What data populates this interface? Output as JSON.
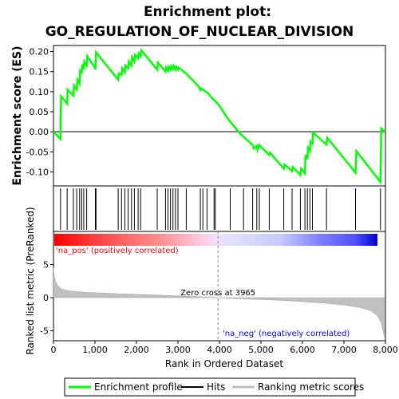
{
  "chart_data": {
    "type": "line",
    "title_line1": "Enrichment plot:",
    "title_line2": "GO_REGULATION_OF_NUCLEAR_DIVISION",
    "top_panel": {
      "ylabel": "Enrichment score (ES)",
      "ylim": [
        -0.135,
        0.215
      ],
      "yticks": [
        "0.20",
        "0.15",
        "0.10",
        "0.05",
        "0.00",
        "-0.05",
        "-0.10"
      ],
      "ytick_values": [
        0.2,
        0.15,
        0.1,
        0.05,
        0.0,
        -0.05,
        -0.1
      ],
      "series": [
        {
          "name": "Enrichment profile",
          "color": "#00ff00",
          "x": [
            0,
            170,
            175,
            185,
            330,
            340,
            480,
            495,
            560,
            575,
            630,
            645,
            680,
            695,
            730,
            745,
            800,
            815,
            1000,
            1010,
            1025,
            1560,
            1575,
            1640,
            1655,
            1720,
            1735,
            1800,
            1815,
            1880,
            1895,
            1950,
            1965,
            2040,
            2055,
            2100,
            2115,
            2500,
            2515,
            2700,
            2715,
            2760,
            2775,
            2820,
            2835,
            2880,
            2895,
            2940,
            2955,
            3000,
            3015,
            3200,
            3500,
            3540,
            3560,
            3600,
            3700,
            4000,
            4200,
            4500,
            4800,
            4830,
            4900,
            4920,
            4960,
            5200,
            5220,
            5550,
            5570,
            5750,
            5770,
            5950,
            5970,
            6060,
            6075,
            6120,
            6135,
            6180,
            6195,
            6240,
            6255,
            6580,
            6600,
            7280,
            7300,
            7880,
            7900,
            7990
          ],
          "y": [
            0.0,
            -0.018,
            0.035,
            0.088,
            0.07,
            0.105,
            0.09,
            0.115,
            0.105,
            0.13,
            0.12,
            0.155,
            0.145,
            0.168,
            0.155,
            0.175,
            0.165,
            0.188,
            0.16,
            0.155,
            0.198,
            0.13,
            0.145,
            0.142,
            0.158,
            0.148,
            0.165,
            0.158,
            0.175,
            0.165,
            0.186,
            0.175,
            0.192,
            0.183,
            0.195,
            0.188,
            0.203,
            0.155,
            0.172,
            0.15,
            0.16,
            0.152,
            0.162,
            0.155,
            0.163,
            0.156,
            0.164,
            0.155,
            0.162,
            0.155,
            0.16,
            0.145,
            0.113,
            0.104,
            0.108,
            0.105,
            0.098,
            0.065,
            0.033,
            -0.005,
            -0.033,
            -0.042,
            -0.035,
            -0.045,
            -0.033,
            -0.058,
            -0.052,
            -0.092,
            -0.082,
            -0.098,
            -0.088,
            -0.108,
            -0.092,
            -0.104,
            -0.058,
            -0.068,
            -0.04,
            -0.048,
            -0.025,
            -0.03,
            -0.002,
            -0.032,
            -0.015,
            -0.102,
            -0.048,
            -0.125,
            0.008,
            0.0
          ]
        }
      ]
    },
    "hits": [
      170,
      330,
      480,
      560,
      630,
      680,
      730,
      800,
      1010,
      1025,
      1560,
      1640,
      1720,
      1800,
      1880,
      1950,
      2040,
      2100,
      2500,
      2700,
      2760,
      2820,
      2880,
      2940,
      3000,
      3200,
      3540,
      3600,
      3700,
      3870,
      3900,
      4260,
      4580,
      4800,
      4900,
      4960,
      5200,
      5550,
      5750,
      5950,
      6060,
      6120,
      6180,
      6240,
      6580,
      7280,
      7880
    ],
    "x_axis": {
      "xlabel": "Rank in Ordered Dataset",
      "xlim": [
        0,
        8000
      ],
      "xticks": [
        "0",
        "1,000",
        "2,000",
        "3,000",
        "4,000",
        "5,000",
        "6,000",
        "7,000",
        "8,000"
      ],
      "xtick_values": [
        0,
        1000,
        2000,
        3000,
        4000,
        5000,
        6000,
        7000,
        8000
      ]
    },
    "bottom_panel": {
      "ylabel": "Ranked list metric (PreRanked)",
      "ylim": [
        -6.5,
        10
      ],
      "yticks": [
        "5",
        "0",
        "-5"
      ],
      "ytick_values": [
        5,
        0,
        -5
      ],
      "zero_cross": 3965,
      "metric_x": [
        0,
        20,
        60,
        120,
        200,
        400,
        800,
        1500,
        2500,
        3500,
        3965,
        4500,
        5500,
        6500,
        7000,
        7400,
        7650,
        7800,
        7900,
        7960,
        7990
      ],
      "metric_y": [
        4.5,
        3.2,
        2.3,
        1.7,
        1.3,
        1.0,
        0.8,
        0.6,
        0.4,
        0.15,
        0.0,
        -0.15,
        -0.4,
        -0.8,
        -1.1,
        -1.5,
        -2.0,
        -2.7,
        -3.8,
        -5.5,
        -6.2
      ]
    },
    "annotations": {
      "pos": "'na_pos' (positively correlated)",
      "neg": "'na_neg' (negatively correlated)",
      "zero": "Zero cross at 3965"
    },
    "legend": {
      "placement": "bottom",
      "items": [
        {
          "label": "Enrichment profile",
          "color": "#00ff00"
        },
        {
          "label": "Hits",
          "color": "#000000"
        },
        {
          "label": "Ranking metric scores",
          "color": "#c0c0c0"
        }
      ]
    },
    "colors": {
      "profile": "#00ff00",
      "metric_fill": "#c0c0c0",
      "pos_text": "#ff0000",
      "neg_text": "#0000ff",
      "zero_line": "#808080"
    }
  }
}
